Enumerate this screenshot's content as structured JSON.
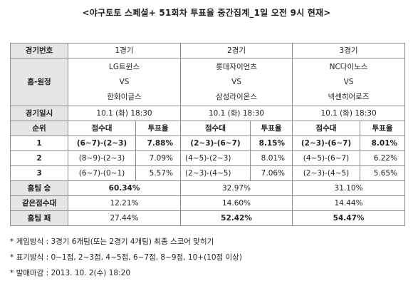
{
  "title": "<야구토토 스페셜+ 51회차 투표율 중간집계_1일 오전 9시 현재>",
  "labels": {
    "game_no": "경기번호",
    "home_away": "홈-원정",
    "game_date": "경기일시",
    "rank": "순위",
    "score_range": "점수대",
    "vote_rate": "투표율",
    "home_win": "홈팀 승",
    "same_score": "같은점수대",
    "home_loss": "홈팀 패"
  },
  "games": [
    {
      "no": "1경기",
      "home": "LG트윈스",
      "vs": "VS",
      "away": "한화이글스",
      "date": "10.1 (화) 18:30",
      "ranks": [
        {
          "score": "(6~7)-(2~3)",
          "rate": "7.88%"
        },
        {
          "score": "(8~9)-(2~3)",
          "rate": "7.09%"
        },
        {
          "score": "(6~7)-(0~1)",
          "rate": "5.57%"
        }
      ],
      "home_win": "60.34%",
      "same_score": "12.21%",
      "home_loss": "27.44%"
    },
    {
      "no": "2경기",
      "home": "롯데자이언츠",
      "vs": "VS",
      "away": "삼성라이온스",
      "date": "10.1 (화) 18:30",
      "ranks": [
        {
          "score": "(2~3)-(6~7)",
          "rate": "8.15%"
        },
        {
          "score": "(4~5)-(2~3)",
          "rate": "8.01%"
        },
        {
          "score": "(2~3)-(4~5)",
          "rate": "7.06%"
        }
      ],
      "home_win": "32.97%",
      "same_score": "14.60%",
      "home_loss": "52.42%"
    },
    {
      "no": "3경기",
      "home": "NC다이노스",
      "vs": "VS",
      "away": "넥센히어로즈",
      "date": "10.1 (화) 18:30",
      "ranks": [
        {
          "score": "(2~3)-(6~7)",
          "rate": "8.01%"
        },
        {
          "score": "(4~5)-(6~7)",
          "rate": "6.22%"
        },
        {
          "score": "(2~3)-(4~5)",
          "rate": "5.65%"
        }
      ],
      "home_win": "31.10%",
      "same_score": "14.44%",
      "home_loss": "54.47%"
    }
  ],
  "rank_numbers": [
    "1",
    "2",
    "3"
  ],
  "notes": [
    "* 게임방식 : 3경기 6개팀(또는 2경기 4개팀) 최종 스코어 맞히기",
    "* 표기방식 : 0~1점, 2~3점, 4~5점, 6~7점, 8~9점, 10+(10점 이상)",
    "* 발매마감 : 2013. 10. 2(수) 18:20"
  ]
}
